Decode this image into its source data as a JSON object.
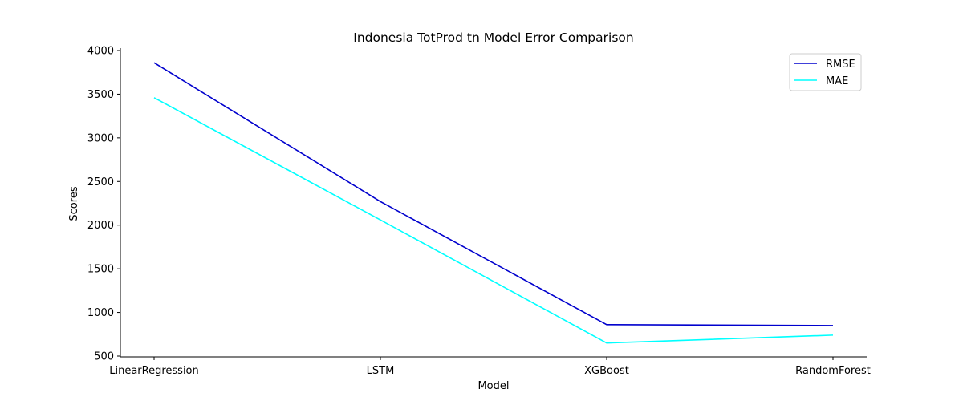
{
  "chart_data": {
    "type": "line",
    "title": "Indonesia TotProd tn Model Error Comparison",
    "xlabel": "Model",
    "ylabel": "Scores",
    "categories": [
      "LinearRegression",
      "LSTM",
      "XGBoost",
      "RandomForest"
    ],
    "ylim": [
      500,
      4000
    ],
    "yticks": [
      500,
      1000,
      1500,
      2000,
      2500,
      3000,
      3500,
      4000
    ],
    "grid": false,
    "legend_position": "top-right",
    "series": [
      {
        "name": "RMSE",
        "color": "#0000cd",
        "values": [
          3860,
          2270,
          860,
          850
        ]
      },
      {
        "name": "MAE",
        "color": "#00ffff",
        "values": [
          3460,
          2060,
          650,
          740
        ]
      }
    ]
  }
}
